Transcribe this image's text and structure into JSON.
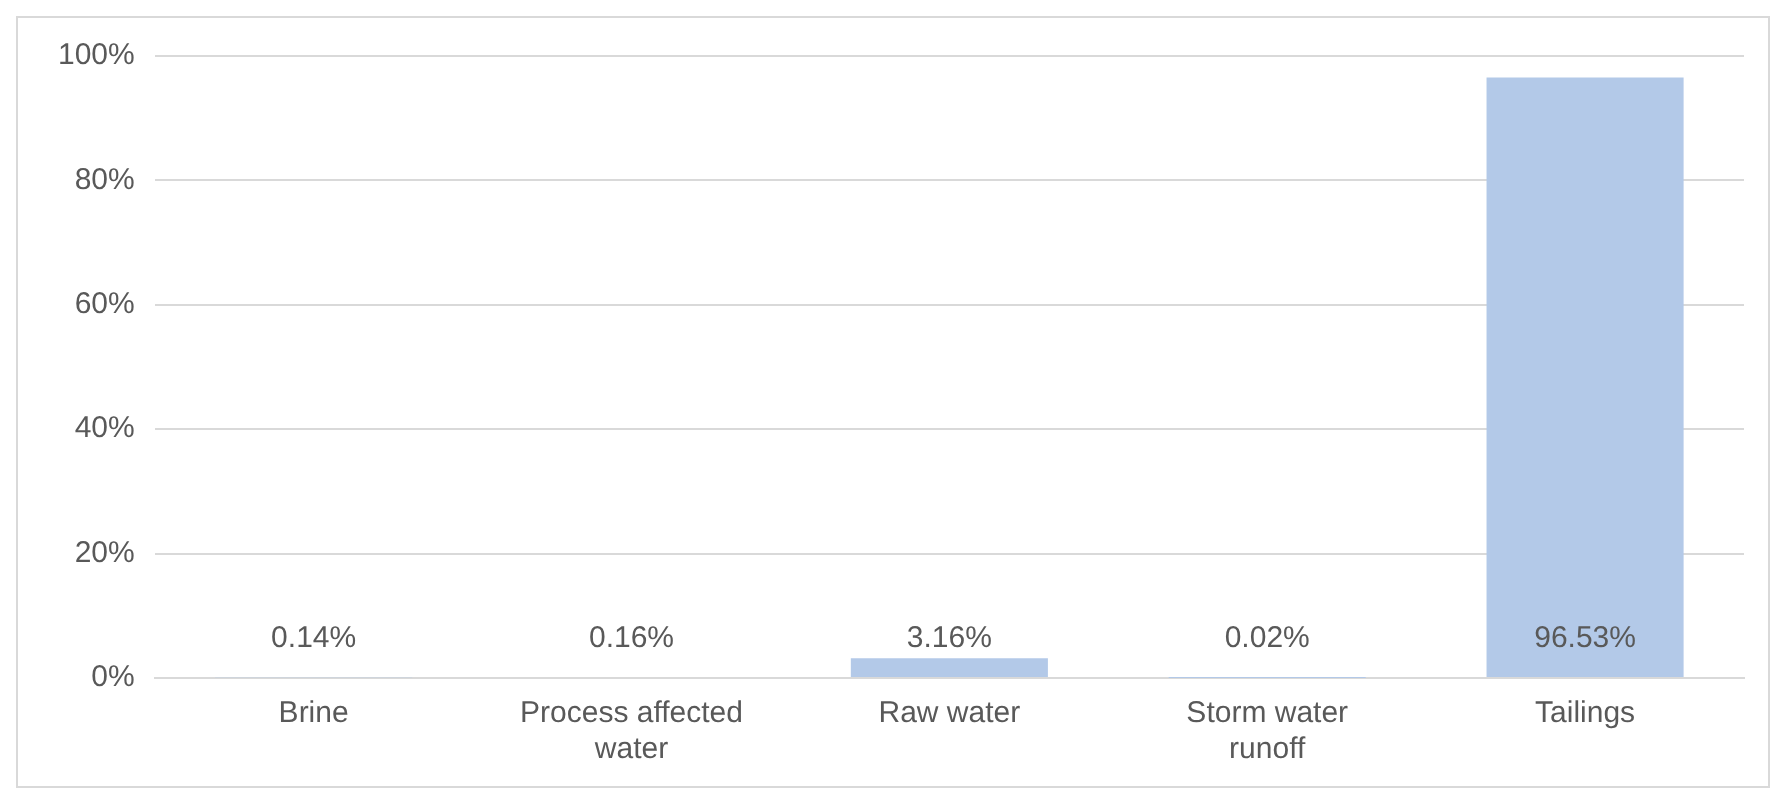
{
  "chart_data": {
    "type": "bar",
    "categories": [
      "Brine",
      "Process affected water",
      "Raw water",
      "Storm water runoff",
      "Tailings"
    ],
    "values": [
      0.14,
      0.16,
      3.16,
      0.02,
      96.53
    ],
    "value_labels": [
      "0.14%",
      "0.16%",
      "3.16%",
      "0.02%",
      "96.53%"
    ],
    "color": "#b3c9e8",
    "ylim": [
      0,
      100
    ],
    "yticks": [
      {
        "value": 0,
        "label": "0%"
      },
      {
        "value": 20,
        "label": "20%"
      },
      {
        "value": 40,
        "label": "40%"
      },
      {
        "value": 60,
        "label": "60%"
      },
      {
        "value": 80,
        "label": "80%"
      },
      {
        "value": 100,
        "label": "100%"
      }
    ],
    "grid": "y",
    "legend": false
  }
}
